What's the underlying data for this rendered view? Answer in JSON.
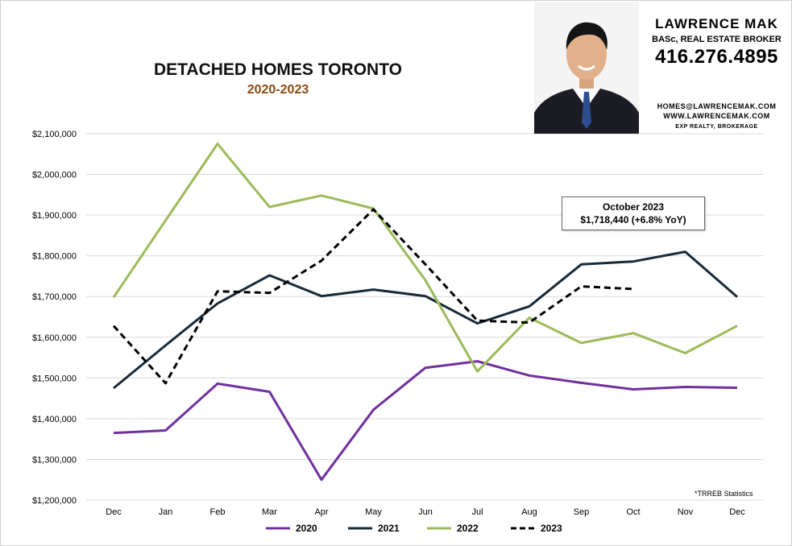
{
  "header": {
    "title": "DETACHED HOMES TORONTO",
    "subtitle": "2020-2023"
  },
  "agent": {
    "name": "LAWRENCE MAK",
    "credentials": "BASc, REAL ESTATE BROKER",
    "phone": "416.276.4895",
    "email": "HOMES@LAWRENCEMAK.COM",
    "website": "WWW.LAWRENCEMAK.COM",
    "brokerage": "EXP REALTY, BROKERAGE",
    "photo": "agent-headshot"
  },
  "callout": {
    "line1": "October 2023",
    "line2": "$1,718,440  (+6.8%  YoY)"
  },
  "source_note": "*TRREB Statistics",
  "chart_data": {
    "type": "line",
    "title": "DETACHED HOMES TORONTO",
    "subtitle": "2020-2023",
    "xlabel": "",
    "ylabel": "",
    "categories": [
      "Dec",
      "Jan",
      "Feb",
      "Mar",
      "Apr",
      "May",
      "Jun",
      "Jul",
      "Aug",
      "Sep",
      "Oct",
      "Nov",
      "Dec"
    ],
    "ylim": [
      1200000,
      2100000
    ],
    "yticks": [
      1200000,
      1300000,
      1400000,
      1500000,
      1600000,
      1700000,
      1800000,
      1900000,
      2000000,
      2100000
    ],
    "ytick_labels": [
      "$1,200,000",
      "$1,300,000",
      "$1,400,000",
      "$1,500,000",
      "$1,600,000",
      "$1,700,000",
      "$1,800,000",
      "$1,900,000",
      "$2,000,000",
      "$2,100,000"
    ],
    "grid": true,
    "legend": "bottom",
    "series": [
      {
        "name": "2020",
        "color": "#7030a0",
        "dash": false,
        "values": [
          1365000,
          1371000,
          1486000,
          1466000,
          1250000,
          1422000,
          1525000,
          1541000,
          1506000,
          1488000,
          1472000,
          1478000,
          1476000
        ]
      },
      {
        "name": "2021",
        "color": "#172a3a",
        "dash": false,
        "values": [
          1475000,
          1580000,
          1683000,
          1752000,
          1701000,
          1717000,
          1701000,
          1634000,
          1676000,
          1779000,
          1786000,
          1810000,
          1699000
        ]
      },
      {
        "name": "2022",
        "color": "#9bbb59",
        "dash": false,
        "values": [
          1698000,
          1887000,
          2075000,
          1920000,
          1948000,
          1916000,
          1740000,
          1516000,
          1648000,
          1586000,
          1610000,
          1561000,
          1628000
        ]
      },
      {
        "name": "2023",
        "color": "#000000",
        "dash": true,
        "values": [
          1628000,
          1487000,
          1713000,
          1709000,
          1788000,
          1914000,
          1779000,
          1641000,
          1636000,
          1725000,
          1718440,
          null,
          null
        ]
      }
    ]
  }
}
